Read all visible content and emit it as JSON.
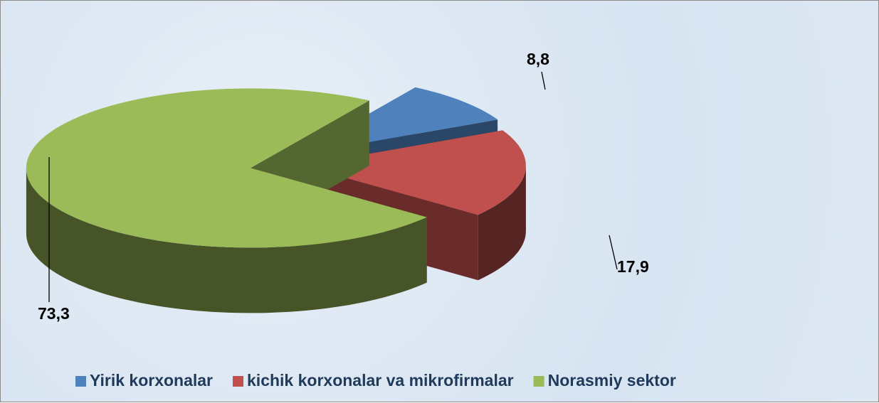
{
  "chart_data": {
    "type": "pie",
    "categories": [
      "Yirik korxonalar",
      "kichik korxonalar va mikrofirmalar",
      "Norasmiy sektor"
    ],
    "values": [
      8.8,
      17.9,
      73.3
    ],
    "value_labels": [
      "8,8",
      "17,9",
      "73,3"
    ],
    "colors": [
      "#4f81bd",
      "#c0504d",
      "#9bbb59"
    ],
    "legend": "bottom"
  }
}
